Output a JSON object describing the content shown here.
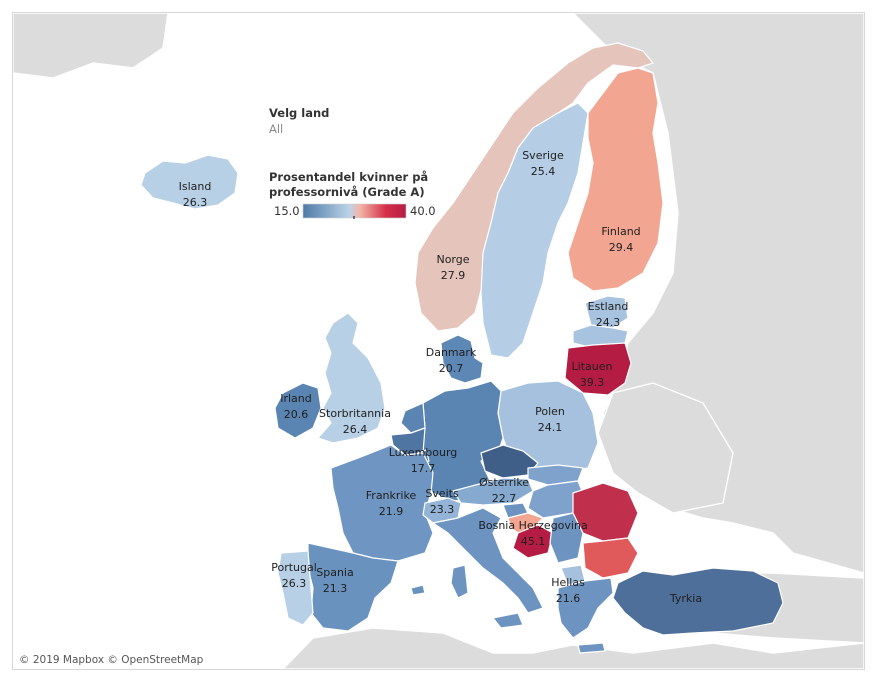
{
  "filter": {
    "title": "Velg land",
    "value": "All"
  },
  "legend": {
    "title_line1": "Prosentandel kvinner på",
    "title_line2": "professornivå (Grade A)",
    "min_label": "15.0",
    "max_label": "40.0",
    "min": 15.0,
    "max": 40.0,
    "colors": [
      "#4e79a7",
      "#bcd3e8",
      "#f2b6a8",
      "#d6304a",
      "#b51c44"
    ]
  },
  "credit": "© 2019 Mapbox © OpenStreetMap",
  "countries": [
    {
      "name": "Island",
      "value": "26.3",
      "fill": "#b7d0e6"
    },
    {
      "name": "Norge",
      "value": "27.9",
      "fill": "#e5c4bc"
    },
    {
      "name": "Sverige",
      "value": "25.4",
      "fill": "#b5cde5"
    },
    {
      "name": "Finland",
      "value": "29.4",
      "fill": "#f2a591"
    },
    {
      "name": "Estland",
      "value": "24.3",
      "fill": "#a8c3df"
    },
    {
      "name": "Litauen",
      "value": "39.3",
      "fill": "#b51c44"
    },
    {
      "name": "Danmark",
      "value": "20.7",
      "fill": "#5d87b5"
    },
    {
      "name": "Irland",
      "value": "20.6",
      "fill": "#5a84b2"
    },
    {
      "name": "Storbritannia",
      "value": "26.4",
      "fill": "#b8d0e6"
    },
    {
      "name": "Polen",
      "value": "24.1",
      "fill": "#a5c1de"
    },
    {
      "name": "Luxembourg",
      "value": "17.7",
      "fill": "#4f76a3"
    },
    {
      "name": "Østerrike",
      "value": "22.7",
      "fill": "#86a9d0"
    },
    {
      "name": "Frankrike",
      "value": "21.9",
      "fill": "#6f96c2"
    },
    {
      "name": "Sveits",
      "value": "23.3",
      "fill": "#93b3d7"
    },
    {
      "name": "Bosnia Herzegovina",
      "value": "45.1",
      "fill": "#b51c44"
    },
    {
      "name": "Portugal",
      "value": "26.3",
      "fill": "#b7d0e6"
    },
    {
      "name": "Spania",
      "value": "21.3",
      "fill": "#6a92bf"
    },
    {
      "name": "Hellas",
      "value": "21.6",
      "fill": "#6d94c1"
    },
    {
      "name": "Tyrkia",
      "value": "",
      "label": "Tyrkia",
      "fill": "#4e6f99"
    }
  ],
  "unlabeled_fills": {
    "germany": "#5a84b2",
    "netherlands": "#5a84b2",
    "belgium": "#4f76a3",
    "czechia": "#3f5f88",
    "slovakia": "#7ea2cc",
    "hungary": "#7ea2cc",
    "slovenia": "#6d94c1",
    "croatia": "#f2a591",
    "serbia": "#6d94c1",
    "romania": "#c0304c",
    "bulgaria": "#e05a5c",
    "italy": "#6d94c1",
    "latvia": "#a8c3df",
    "macedonia": "#a5c1de"
  }
}
